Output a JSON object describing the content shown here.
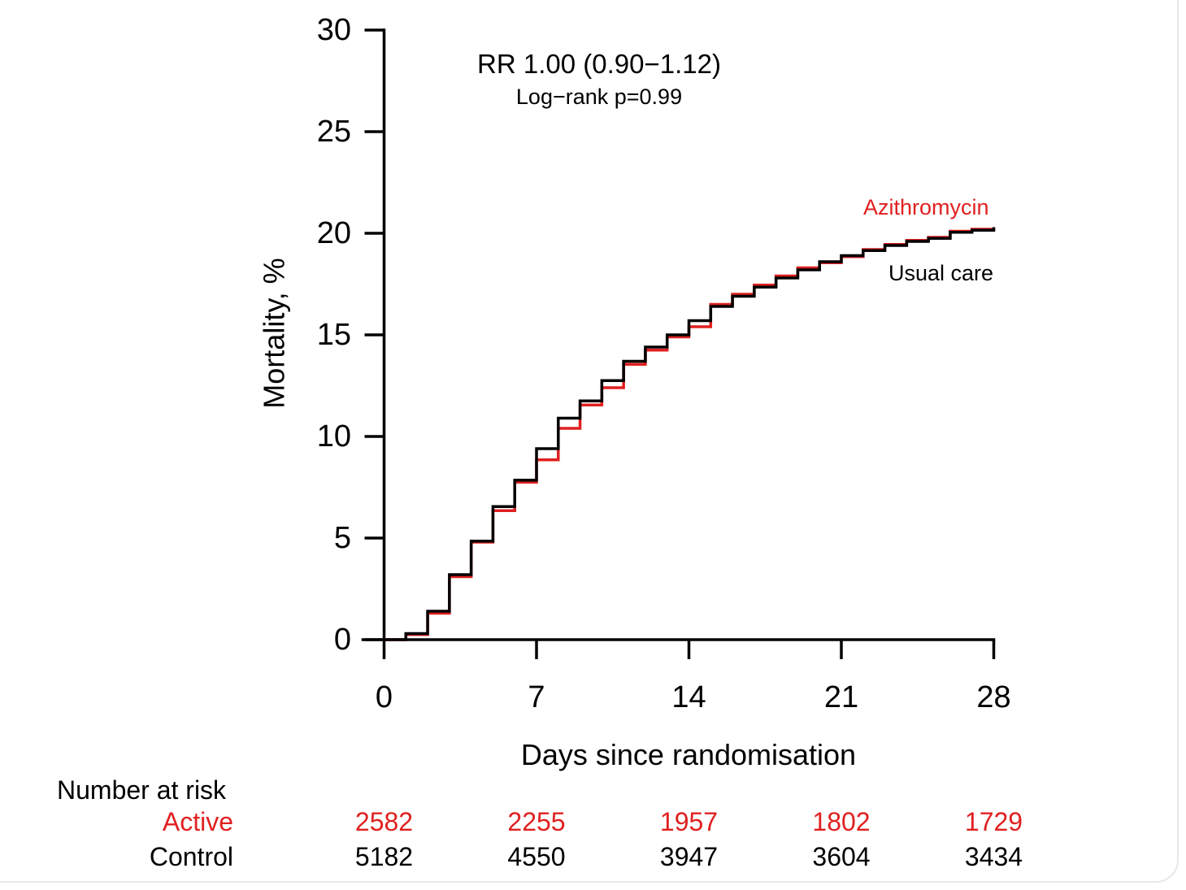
{
  "chart_data": {
    "type": "line",
    "subtype": "kaplan-meier-step",
    "annotations": {
      "rr": "RR 1.00 (0.90−1.12)",
      "logrank": "Log−rank p=0.99"
    },
    "xlabel": "Days since randomisation",
    "ylabel": "Mortality, %",
    "xlim": [
      0,
      28
    ],
    "ylim": [
      0,
      30
    ],
    "xticks": [
      0,
      7,
      14,
      21,
      28
    ],
    "yticks": [
      0,
      5,
      10,
      15,
      20,
      25,
      30
    ],
    "grid": false,
    "legend_position": "annotated-on-curve",
    "x_unit": "days",
    "y_unit": "percent",
    "series": [
      {
        "name": "Azithromycin",
        "label_text": "Azithromycin",
        "color": "#e02020",
        "x": [
          0,
          1,
          2,
          3,
          4,
          5,
          6,
          7,
          8,
          9,
          10,
          11,
          12,
          13,
          14,
          15,
          16,
          17,
          18,
          19,
          20,
          21,
          22,
          23,
          24,
          25,
          26,
          27,
          28
        ],
        "values": [
          0,
          0.25,
          1.3,
          3.1,
          4.8,
          6.35,
          7.75,
          8.85,
          10.4,
          11.55,
          12.4,
          13.55,
          14.25,
          14.9,
          15.4,
          16.5,
          17.0,
          17.45,
          17.9,
          18.3,
          18.55,
          18.85,
          19.2,
          19.45,
          19.65,
          19.8,
          20.1,
          20.2,
          20.25
        ]
      },
      {
        "name": "Usual care",
        "label_text": "Usual care",
        "color": "#000000",
        "x": [
          0,
          1,
          2,
          3,
          4,
          5,
          6,
          7,
          8,
          9,
          10,
          11,
          12,
          13,
          14,
          15,
          16,
          17,
          18,
          19,
          20,
          21,
          22,
          23,
          24,
          25,
          26,
          27,
          28
        ],
        "values": [
          0,
          0.3,
          1.4,
          3.2,
          4.85,
          6.55,
          7.85,
          9.4,
          10.9,
          11.75,
          12.75,
          13.7,
          14.4,
          15.0,
          15.7,
          16.4,
          16.9,
          17.35,
          17.8,
          18.2,
          18.6,
          18.9,
          19.15,
          19.4,
          19.6,
          19.75,
          20.05,
          20.15,
          20.3
        ]
      }
    ],
    "risk_table": {
      "header": "Number at risk",
      "columns_days": [
        0,
        7,
        14,
        21,
        28
      ],
      "rows": [
        {
          "label": "Active",
          "color": "#e02020",
          "values": [
            "2582",
            "2255",
            "1957",
            "1802",
            "1729"
          ]
        },
        {
          "label": "Control",
          "color": "#000000",
          "values": [
            "5182",
            "4550",
            "3947",
            "3604",
            "3434"
          ]
        }
      ]
    },
    "colors": {
      "axis": "#000000",
      "active_red": "#e02020",
      "control_black": "#000000",
      "card_border": "#e7e7e7"
    }
  }
}
